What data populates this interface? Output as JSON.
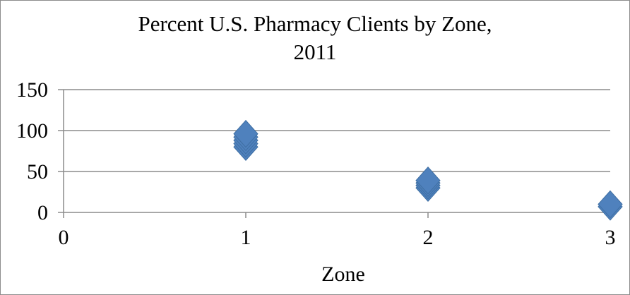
{
  "chart_data": {
    "type": "scatter",
    "title_lines": [
      "Percent U.S. Pharmacy Clients by Zone,",
      "2011"
    ],
    "xlabel": "Zone",
    "ylabel": "",
    "xlim": [
      0,
      3
    ],
    "ylim": [
      0,
      150
    ],
    "x_ticks": [
      "0",
      "1",
      "2",
      "3"
    ],
    "y_ticks": [
      "0",
      "50",
      "100",
      "150"
    ],
    "grid": "horizontal",
    "legend": "none",
    "marker": "diamond",
    "color": "#4f81bd",
    "series": [
      {
        "points": [
          {
            "x": 1,
            "y": 80
          },
          {
            "x": 1,
            "y": 84
          },
          {
            "x": 1,
            "y": 88
          },
          {
            "x": 1,
            "y": 92
          },
          {
            "x": 1,
            "y": 96
          },
          {
            "x": 2,
            "y": 30
          },
          {
            "x": 2,
            "y": 33
          },
          {
            "x": 2,
            "y": 36
          },
          {
            "x": 2,
            "y": 39
          },
          {
            "x": 3,
            "y": 7
          },
          {
            "x": 3,
            "y": 10
          }
        ]
      }
    ]
  }
}
